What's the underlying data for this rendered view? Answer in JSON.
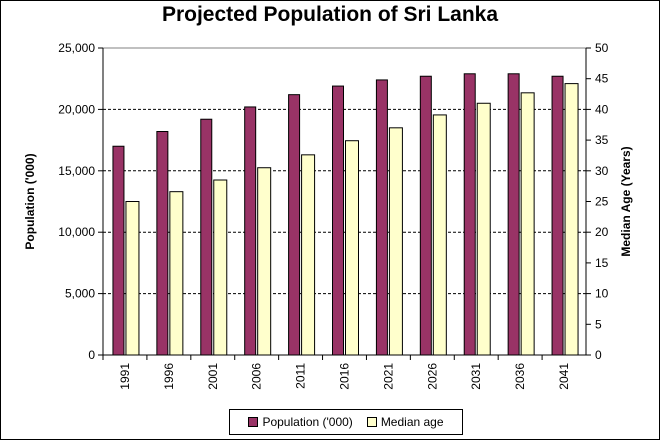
{
  "chart_data": {
    "type": "bar",
    "title": "Projected Population of Sri Lanka",
    "xlabel": "",
    "ylabel": "Population ('000)",
    "y2label": "Median Age (Years)",
    "ylim": [
      0,
      25000
    ],
    "y2lim": [
      0,
      50
    ],
    "yticks": [
      "0",
      "5,000",
      "10,000",
      "15,000",
      "20,000",
      "25,000"
    ],
    "y2ticks": [
      "0",
      "5",
      "10",
      "15",
      "20",
      "25",
      "30",
      "35",
      "40",
      "45",
      "50"
    ],
    "grid": true,
    "legend_position": "bottom",
    "categories": [
      "1991",
      "1996",
      "2001",
      "2006",
      "2011",
      "2016",
      "2021",
      "2026",
      "2031",
      "2036",
      "2041"
    ],
    "series": [
      {
        "name": "Population ('000)",
        "axis": "left",
        "color": "#993366",
        "values": [
          17000,
          18200,
          19200,
          20200,
          21200,
          21900,
          22400,
          22700,
          22900,
          22900,
          22700
        ]
      },
      {
        "name": "Median age",
        "axis": "right",
        "color": "#FFFFCC",
        "values": [
          25.0,
          26.6,
          28.5,
          30.5,
          32.6,
          34.9,
          37.0,
          39.1,
          41.0,
          42.7,
          44.2
        ]
      }
    ]
  }
}
